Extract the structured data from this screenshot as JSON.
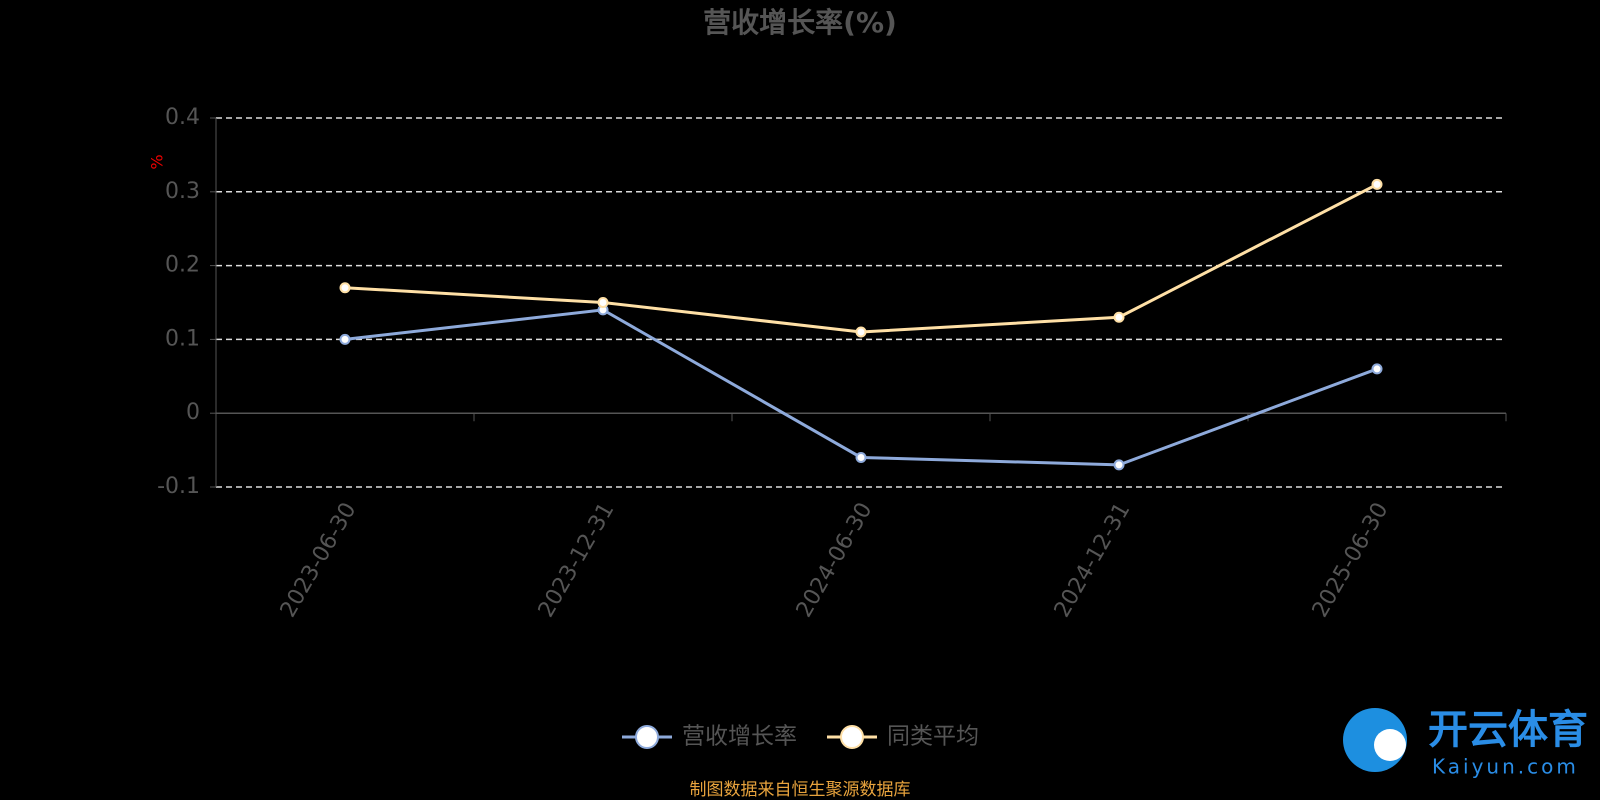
{
  "chart_data": {
    "type": "line",
    "title": "营收增长率(%)",
    "y_label": "%",
    "categories": [
      "2023-06-30",
      "2023-12-31",
      "2024-06-30",
      "2024-12-31",
      "2025-06-30"
    ],
    "series": [
      {
        "name": "营收增长率",
        "color": "#8eaadb",
        "values": [
          0.1,
          0.14,
          -0.06,
          -0.07,
          0.06
        ]
      },
      {
        "name": "同类平均",
        "color": "#ffe0a6",
        "values": [
          0.17,
          0.15,
          0.11,
          0.13,
          0.31
        ]
      }
    ],
    "ylim": [
      -0.1,
      0.4
    ],
    "yticks": [
      -0.1,
      0,
      0.1,
      0.2,
      0.3,
      0.4
    ],
    "grid": true,
    "legend": "bottom",
    "source": "制图数据来自恒生聚源数据库"
  },
  "watermark": {
    "name": "开云体育",
    "site": "Kaiyun.com"
  }
}
